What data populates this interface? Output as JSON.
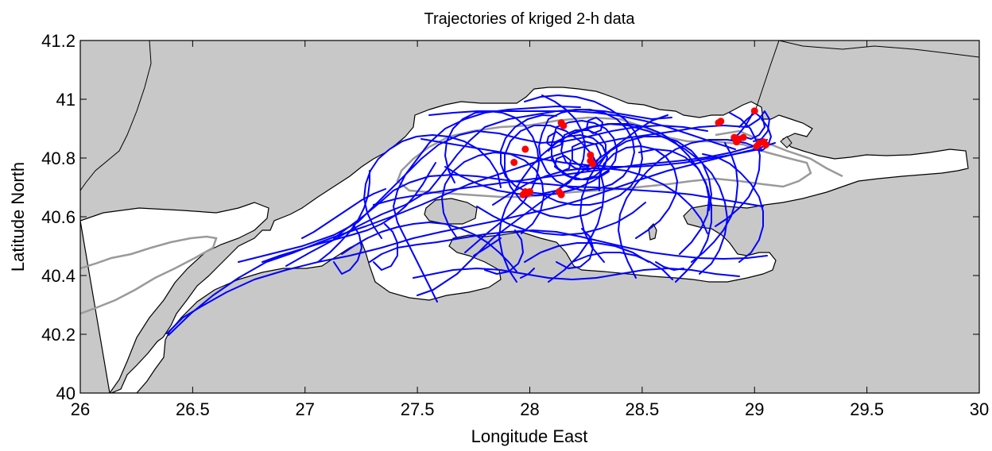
{
  "chart_data": {
    "type": "map",
    "title": "Trajectories of kriged 2-h data",
    "xlabel": "Longitude East",
    "ylabel": "Latitude North",
    "xlim": [
      26,
      30
    ],
    "ylim": [
      40,
      41.2
    ],
    "xticks": [
      "26",
      "26.5",
      "27",
      "27.5",
      "28",
      "28.5",
      "29",
      "29.5",
      "30"
    ],
    "yticks": [
      "40",
      "40.2",
      "40.4",
      "40.6",
      "40.8",
      "41",
      "41.2"
    ],
    "grid": false,
    "colors": {
      "land": "#c8c8c8",
      "sea": "#ffffff",
      "coastline": "#000000",
      "isobath": "#9a9a9a",
      "trajectory": "#0000ff",
      "endpoint": "#ff0000"
    },
    "endpoints": [
      {
        "lon": 28.14,
        "lat": 40.92
      },
      {
        "lon": 28.15,
        "lat": 40.91
      },
      {
        "lon": 28.84,
        "lat": 40.92
      },
      {
        "lon": 28.85,
        "lat": 40.925
      },
      {
        "lon": 29.0,
        "lat": 40.96
      },
      {
        "lon": 28.91,
        "lat": 40.87
      },
      {
        "lon": 28.93,
        "lat": 40.865
      },
      {
        "lon": 28.95,
        "lat": 40.87
      },
      {
        "lon": 28.92,
        "lat": 40.855
      },
      {
        "lon": 29.02,
        "lat": 40.85
      },
      {
        "lon": 29.04,
        "lat": 40.855
      },
      {
        "lon": 29.01,
        "lat": 40.84
      },
      {
        "lon": 29.05,
        "lat": 40.845
      },
      {
        "lon": 27.98,
        "lat": 40.83
      },
      {
        "lon": 27.93,
        "lat": 40.785
      },
      {
        "lon": 28.27,
        "lat": 40.81
      },
      {
        "lon": 28.27,
        "lat": 40.79
      },
      {
        "lon": 28.28,
        "lat": 40.78
      },
      {
        "lon": 27.98,
        "lat": 40.685
      },
      {
        "lon": 27.99,
        "lat": 40.68
      },
      {
        "lon": 27.97,
        "lat": 40.675
      },
      {
        "lon": 28.0,
        "lat": 40.685
      },
      {
        "lon": 28.13,
        "lat": 40.685
      },
      {
        "lon": 28.14,
        "lat": 40.675
      }
    ]
  }
}
